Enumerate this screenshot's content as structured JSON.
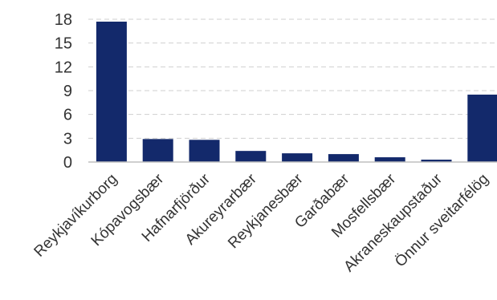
{
  "chart_data": {
    "type": "bar",
    "categories": [
      "Reykjavíkurborg",
      "Kópavogsbær",
      "Hafnarfjörður",
      "Akureyrarbær",
      "Reykjanesbær",
      "Garðabær",
      "Mosfellsbær",
      "Akraneskaupstaður",
      "Önnur sveitarfélög"
    ],
    "values": [
      17.7,
      2.9,
      2.8,
      1.4,
      1.1,
      1.0,
      0.6,
      0.3,
      8.5
    ],
    "title": "",
    "xlabel": "",
    "ylabel": "",
    "ylim": [
      0,
      18
    ],
    "yticks": [
      0,
      3,
      6,
      9,
      12,
      15,
      18
    ],
    "grid": true,
    "legend": "none",
    "bar_color": "#13296b"
  }
}
